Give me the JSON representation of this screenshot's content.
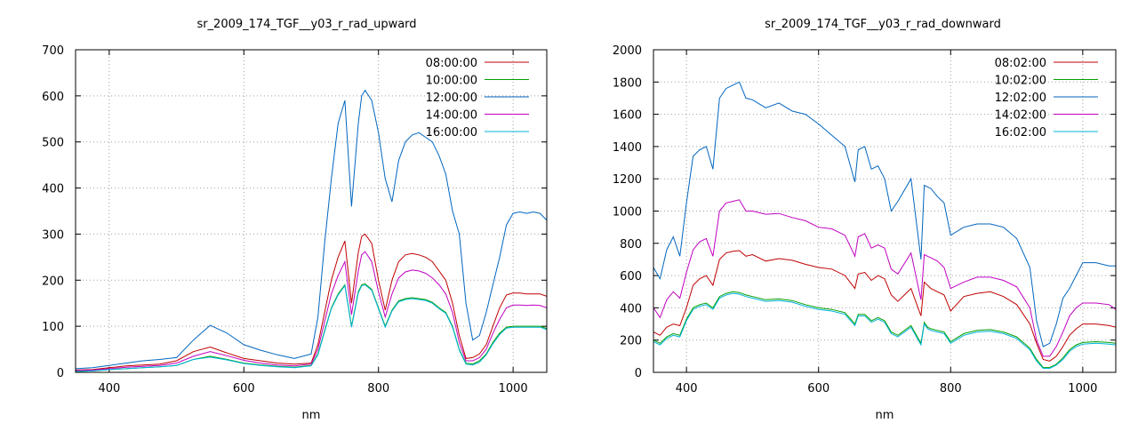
{
  "chart_data": [
    {
      "type": "line",
      "title": "sr_2009_174_TGF__y03_r_rad_upward",
      "xlabel": "nm",
      "ylabel": "",
      "xlim": [
        350,
        1050
      ],
      "ylim": [
        0,
        700
      ],
      "xticks": [
        400,
        600,
        800,
        1000
      ],
      "yticks": [
        0,
        100,
        200,
        300,
        400,
        500,
        600,
        700
      ],
      "grid": true,
      "legend_position": "top-right",
      "x": [
        350,
        375,
        400,
        425,
        450,
        475,
        500,
        525,
        550,
        575,
        600,
        625,
        650,
        675,
        700,
        710,
        720,
        730,
        740,
        750,
        760,
        770,
        775,
        780,
        790,
        800,
        810,
        820,
        830,
        840,
        850,
        860,
        870,
        880,
        890,
        900,
        910,
        920,
        930,
        940,
        950,
        960,
        970,
        980,
        990,
        1000,
        1010,
        1020,
        1030,
        1040,
        1050
      ],
      "series": [
        {
          "name": "08:00:00",
          "color": "#c00000",
          "values": [
            5,
            6,
            10,
            14,
            16,
            18,
            25,
            45,
            55,
            42,
            30,
            25,
            20,
            18,
            20,
            60,
            130,
            200,
            250,
            285,
            150,
            260,
            295,
            300,
            280,
            200,
            135,
            200,
            240,
            255,
            258,
            255,
            250,
            240,
            220,
            200,
            150,
            80,
            30,
            32,
            40,
            60,
            100,
            140,
            168,
            172,
            172,
            170,
            170,
            170,
            165
          ]
        },
        {
          "name": "10:00:00",
          "color": "#00a000",
          "values": [
            2,
            3,
            6,
            8,
            10,
            12,
            15,
            28,
            35,
            28,
            20,
            16,
            13,
            11,
            15,
            40,
            90,
            140,
            170,
            190,
            100,
            175,
            190,
            192,
            180,
            140,
            100,
            135,
            155,
            160,
            162,
            160,
            158,
            152,
            140,
            130,
            100,
            50,
            20,
            18,
            25,
            40,
            65,
            85,
            98,
            100,
            100,
            100,
            100,
            100,
            95
          ]
        },
        {
          "name": "12:00:00",
          "color": "#0066c0",
          "values": [
            8,
            10,
            15,
            20,
            25,
            28,
            32,
            70,
            102,
            85,
            60,
            48,
            38,
            30,
            40,
            120,
            280,
            420,
            540,
            590,
            360,
            540,
            600,
            612,
            590,
            520,
            420,
            370,
            460,
            500,
            515,
            520,
            510,
            500,
            470,
            430,
            350,
            300,
            150,
            70,
            80,
            130,
            190,
            250,
            320,
            345,
            348,
            345,
            348,
            345,
            330
          ]
        },
        {
          "name": "14:00:00",
          "color": "#c000c0",
          "values": [
            4,
            5,
            8,
            11,
            13,
            15,
            20,
            35,
            45,
            36,
            26,
            20,
            16,
            14,
            18,
            50,
            110,
            170,
            210,
            240,
            125,
            220,
            255,
            262,
            240,
            175,
            120,
            170,
            205,
            218,
            222,
            220,
            215,
            205,
            190,
            170,
            130,
            65,
            25,
            25,
            32,
            50,
            85,
            115,
            140,
            146,
            146,
            145,
            146,
            145,
            140
          ]
        },
        {
          "name": "16:00:00",
          "color": "#00b4dc",
          "values": [
            2,
            3,
            6,
            8,
            10,
            12,
            15,
            28,
            33,
            27,
            19,
            15,
            12,
            10,
            14,
            38,
            88,
            138,
            168,
            188,
            98,
            172,
            188,
            190,
            178,
            138,
            98,
            133,
            153,
            158,
            160,
            158,
            156,
            150,
            138,
            128,
            98,
            48,
            18,
            16,
            22,
            38,
            62,
            82,
            96,
            98,
            98,
            98,
            98,
            98,
            93
          ]
        }
      ]
    },
    {
      "type": "line",
      "title": "sr_2009_174_TGF__y03_r_rad_downward",
      "xlabel": "nm",
      "ylabel": "",
      "xlim": [
        350,
        1050
      ],
      "ylim": [
        0,
        2000
      ],
      "xticks": [
        400,
        600,
        800,
        1000
      ],
      "yticks": [
        0,
        200,
        400,
        600,
        800,
        1000,
        1200,
        1400,
        1600,
        1800,
        2000
      ],
      "grid": true,
      "legend_position": "top-right",
      "x": [
        350,
        360,
        370,
        380,
        390,
        400,
        410,
        420,
        430,
        440,
        450,
        460,
        470,
        480,
        490,
        500,
        520,
        540,
        560,
        580,
        600,
        620,
        640,
        655,
        660,
        670,
        680,
        690,
        700,
        710,
        720,
        740,
        755,
        760,
        765,
        770,
        780,
        790,
        800,
        820,
        840,
        860,
        880,
        900,
        920,
        930,
        940,
        950,
        960,
        970,
        980,
        990,
        1000,
        1020,
        1040,
        1050
      ],
      "series": [
        {
          "name": "08:02:00",
          "color": "#c00000",
          "values": [
            250,
            230,
            280,
            300,
            290,
            400,
            540,
            580,
            600,
            540,
            700,
            740,
            750,
            755,
            720,
            730,
            690,
            705,
            695,
            670,
            650,
            640,
            600,
            520,
            610,
            620,
            570,
            600,
            580,
            480,
            440,
            520,
            350,
            560,
            540,
            520,
            500,
            480,
            380,
            470,
            490,
            500,
            470,
            420,
            300,
            180,
            80,
            70,
            100,
            160,
            230,
            270,
            300,
            300,
            290,
            280
          ]
        },
        {
          "name": "10:02:00",
          "color": "#00a000",
          "values": [
            200,
            180,
            220,
            240,
            230,
            330,
            400,
            420,
            430,
            400,
            470,
            490,
            500,
            495,
            480,
            470,
            450,
            455,
            445,
            420,
            400,
            390,
            370,
            300,
            360,
            360,
            320,
            340,
            320,
            250,
            230,
            290,
            180,
            310,
            280,
            270,
            260,
            250,
            190,
            240,
            260,
            265,
            250,
            220,
            150,
            80,
            30,
            30,
            50,
            90,
            140,
            170,
            185,
            190,
            185,
            180
          ]
        },
        {
          "name": "12:02:00",
          "color": "#0066c0",
          "values": [
            650,
            580,
            760,
            840,
            720,
            1050,
            1340,
            1380,
            1400,
            1260,
            1700,
            1760,
            1780,
            1800,
            1700,
            1690,
            1640,
            1670,
            1620,
            1600,
            1540,
            1470,
            1400,
            1180,
            1380,
            1400,
            1260,
            1280,
            1200,
            1000,
            1060,
            1200,
            700,
            1160,
            1150,
            1140,
            1090,
            1050,
            850,
            900,
            920,
            920,
            900,
            830,
            650,
            320,
            160,
            180,
            300,
            460,
            520,
            600,
            680,
            680,
            660,
            660
          ]
        },
        {
          "name": "14:02:00",
          "color": "#c000c0",
          "values": [
            400,
            340,
            450,
            500,
            460,
            620,
            760,
            810,
            830,
            720,
            1000,
            1050,
            1060,
            1070,
            1000,
            1000,
            980,
            985,
            960,
            940,
            900,
            890,
            850,
            720,
            840,
            860,
            770,
            790,
            770,
            640,
            610,
            740,
            450,
            730,
            720,
            710,
            690,
            650,
            520,
            560,
            590,
            590,
            570,
            530,
            400,
            200,
            100,
            100,
            160,
            250,
            350,
            400,
            430,
            430,
            420,
            390
          ]
        },
        {
          "name": "16:02:00",
          "color": "#00b4dc",
          "values": [
            190,
            170,
            210,
            230,
            220,
            320,
            390,
            410,
            420,
            390,
            460,
            480,
            490,
            485,
            470,
            460,
            440,
            445,
            435,
            410,
            390,
            380,
            360,
            290,
            350,
            350,
            310,
            330,
            310,
            240,
            220,
            280,
            170,
            300,
            270,
            260,
            250,
            240,
            180,
            230,
            250,
            255,
            240,
            210,
            140,
            70,
            25,
            25,
            45,
            80,
            130,
            160,
            175,
            180,
            175,
            170
          ]
        }
      ]
    }
  ]
}
